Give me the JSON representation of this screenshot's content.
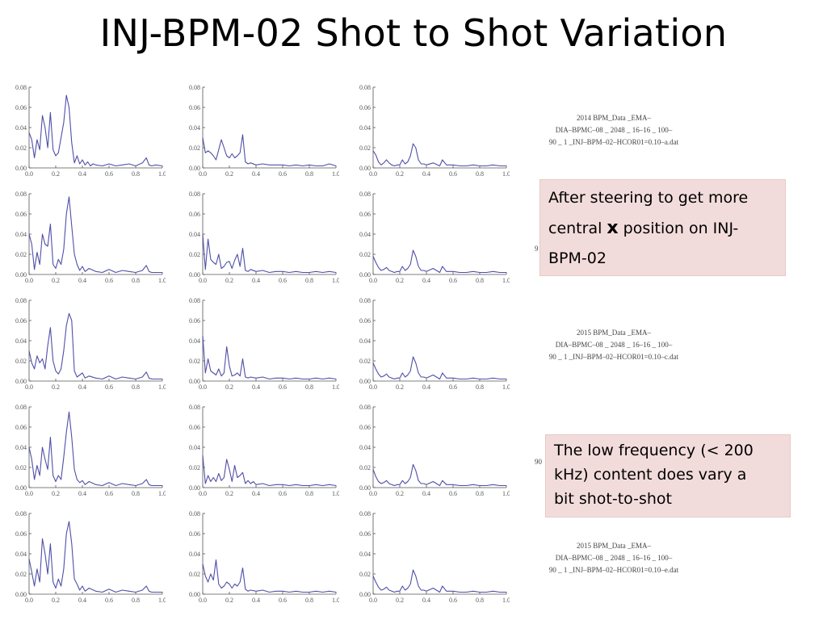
{
  "slide": {
    "title": "INJ-BPM-02 Shot to Shot Variation",
    "filenames": [
      {
        "lines": [
          "2014 BPM_Data _EMA–",
          "DIA–BPMC–08 _ 2048 _ 16–16 _ 100–",
          "90 _ 1 _INJ–BPM–02–HCOR01=0.10–a.dat"
        ]
      },
      {
        "lines": [
          "2015 BPM_Data _EMA–",
          "DIA–BPMC–08 _ 2048 _ 16–16 _ 100–",
          "90 _ 1 _INJ–BPM–02–HCOR01=0.10–c.dat"
        ]
      },
      {
        "lines": [
          "2015 BPM_Data _EMA–",
          "DIA–BPMC–08 _ 2048 _ 16–16 _ 100–",
          "90 _ 1 _INJ–BPM–02–HCOR01=0.10–e.dat"
        ]
      }
    ],
    "stray_glyphs": [
      "9",
      "90"
    ],
    "note1": {
      "line1": "After steering to get more",
      "pre": "central ",
      "bold": "x",
      "post": " position on INJ-",
      "line3": "BPM-02"
    },
    "note2": {
      "line1": "The low frequency (< 200",
      "line2": "kHz) content does vary a",
      "line3": "bit shot-to-shot"
    }
  },
  "chart_data": {
    "type": "line",
    "layout": "grid 5 rows x 3 columns",
    "line_color": "#4f4fa8",
    "axis_color": "#555555",
    "xlim": [
      0,
      1.0
    ],
    "ylim": [
      0,
      0.08
    ],
    "xticks": [
      0,
      0.2,
      0.4,
      0.6,
      0.8,
      1.0
    ],
    "yticks": [
      0,
      0.02,
      0.04,
      0.06,
      0.08
    ],
    "xtick_labels": [
      "0.0",
      "0.2",
      "0.4",
      "0.6",
      "0.8",
      "1.0"
    ],
    "ytick_labels": [
      "0.00",
      "0.02",
      "0.04",
      "0.06",
      "0.08"
    ],
    "panels": [
      {
        "x": [
          0,
          0.02,
          0.04,
          0.06,
          0.08,
          0.1,
          0.12,
          0.14,
          0.16,
          0.18,
          0.2,
          0.22,
          0.24,
          0.26,
          0.28,
          0.3,
          0.32,
          0.34,
          0.36,
          0.38,
          0.4,
          0.42,
          0.44,
          0.46,
          0.48,
          0.5,
          0.55,
          0.6,
          0.65,
          0.7,
          0.75,
          0.8,
          0.85,
          0.88,
          0.9,
          0.92,
          0.95,
          1.0
        ],
        "y": [
          0.035,
          0.028,
          0.01,
          0.028,
          0.018,
          0.052,
          0.04,
          0.02,
          0.055,
          0.018,
          0.012,
          0.015,
          0.03,
          0.045,
          0.072,
          0.06,
          0.025,
          0.005,
          0.012,
          0.004,
          0.008,
          0.003,
          0.006,
          0.002,
          0.004,
          0.003,
          0.002,
          0.004,
          0.002,
          0.003,
          0.004,
          0.002,
          0.005,
          0.01,
          0.003,
          0.002,
          0.003,
          0.002
        ]
      },
      {
        "x": [
          0,
          0.02,
          0.04,
          0.06,
          0.08,
          0.1,
          0.12,
          0.14,
          0.16,
          0.18,
          0.2,
          0.22,
          0.24,
          0.26,
          0.28,
          0.3,
          0.32,
          0.34,
          0.36,
          0.4,
          0.45,
          0.5,
          0.55,
          0.6,
          0.65,
          0.7,
          0.75,
          0.8,
          0.85,
          0.9,
          0.95,
          1.0
        ],
        "y": [
          0.03,
          0.015,
          0.017,
          0.015,
          0.012,
          0.008,
          0.018,
          0.028,
          0.02,
          0.012,
          0.01,
          0.014,
          0.01,
          0.012,
          0.015,
          0.033,
          0.006,
          0.004,
          0.005,
          0.003,
          0.004,
          0.003,
          0.003,
          0.003,
          0.002,
          0.003,
          0.002,
          0.003,
          0.002,
          0.002,
          0.004,
          0.002
        ]
      },
      {
        "x": [
          0,
          0.02,
          0.04,
          0.06,
          0.08,
          0.1,
          0.12,
          0.14,
          0.16,
          0.18,
          0.2,
          0.22,
          0.24,
          0.26,
          0.28,
          0.3,
          0.32,
          0.34,
          0.36,
          0.38,
          0.4,
          0.45,
          0.5,
          0.52,
          0.55,
          0.6,
          0.65,
          0.7,
          0.75,
          0.8,
          0.85,
          0.9,
          0.95,
          1.0
        ],
        "y": [
          0.017,
          0.013,
          0.006,
          0.003,
          0.005,
          0.008,
          0.005,
          0.003,
          0.002,
          0.003,
          0.003,
          0.008,
          0.004,
          0.006,
          0.012,
          0.024,
          0.02,
          0.008,
          0.004,
          0.004,
          0.003,
          0.005,
          0.002,
          0.008,
          0.003,
          0.003,
          0.002,
          0.002,
          0.003,
          0.002,
          0.002,
          0.003,
          0.002,
          0.002
        ]
      },
      {
        "x": [
          0,
          0.02,
          0.04,
          0.06,
          0.08,
          0.1,
          0.12,
          0.14,
          0.16,
          0.18,
          0.2,
          0.22,
          0.24,
          0.26,
          0.28,
          0.3,
          0.32,
          0.34,
          0.36,
          0.38,
          0.4,
          0.42,
          0.45,
          0.5,
          0.55,
          0.6,
          0.65,
          0.7,
          0.75,
          0.8,
          0.85,
          0.88,
          0.9,
          0.92,
          0.95,
          1.0
        ],
        "y": [
          0.04,
          0.03,
          0.005,
          0.022,
          0.01,
          0.04,
          0.03,
          0.028,
          0.05,
          0.01,
          0.006,
          0.015,
          0.01,
          0.025,
          0.06,
          0.077,
          0.048,
          0.02,
          0.01,
          0.004,
          0.008,
          0.003,
          0.006,
          0.003,
          0.002,
          0.005,
          0.002,
          0.004,
          0.003,
          0.002,
          0.004,
          0.009,
          0.003,
          0.002,
          0.002,
          0.002
        ]
      },
      {
        "x": [
          0,
          0.02,
          0.04,
          0.06,
          0.08,
          0.1,
          0.12,
          0.14,
          0.16,
          0.18,
          0.2,
          0.22,
          0.24,
          0.26,
          0.28,
          0.3,
          0.32,
          0.34,
          0.36,
          0.4,
          0.45,
          0.5,
          0.55,
          0.6,
          0.65,
          0.7,
          0.75,
          0.8,
          0.85,
          0.9,
          0.95,
          1.0
        ],
        "y": [
          0.04,
          0.005,
          0.035,
          0.015,
          0.012,
          0.01,
          0.02,
          0.006,
          0.008,
          0.012,
          0.013,
          0.006,
          0.014,
          0.02,
          0.008,
          0.026,
          0.004,
          0.003,
          0.005,
          0.003,
          0.004,
          0.002,
          0.003,
          0.003,
          0.002,
          0.003,
          0.002,
          0.002,
          0.003,
          0.002,
          0.003,
          0.002
        ]
      },
      {
        "x": [
          0,
          0.02,
          0.04,
          0.06,
          0.08,
          0.1,
          0.12,
          0.14,
          0.16,
          0.18,
          0.2,
          0.22,
          0.24,
          0.26,
          0.28,
          0.3,
          0.32,
          0.34,
          0.36,
          0.38,
          0.4,
          0.45,
          0.5,
          0.52,
          0.55,
          0.6,
          0.65,
          0.7,
          0.75,
          0.8,
          0.85,
          0.9,
          0.95,
          1.0
        ],
        "y": [
          0.018,
          0.012,
          0.007,
          0.004,
          0.005,
          0.007,
          0.004,
          0.003,
          0.002,
          0.003,
          0.003,
          0.008,
          0.004,
          0.006,
          0.01,
          0.024,
          0.018,
          0.008,
          0.004,
          0.004,
          0.003,
          0.006,
          0.002,
          0.008,
          0.003,
          0.003,
          0.002,
          0.002,
          0.003,
          0.002,
          0.002,
          0.003,
          0.002,
          0.002
        ]
      },
      {
        "x": [
          0,
          0.02,
          0.04,
          0.06,
          0.08,
          0.1,
          0.12,
          0.14,
          0.16,
          0.18,
          0.2,
          0.22,
          0.24,
          0.26,
          0.28,
          0.3,
          0.32,
          0.34,
          0.36,
          0.38,
          0.4,
          0.42,
          0.45,
          0.5,
          0.55,
          0.6,
          0.65,
          0.7,
          0.75,
          0.8,
          0.85,
          0.88,
          0.9,
          0.92,
          0.95,
          1.0
        ],
        "y": [
          0.03,
          0.018,
          0.012,
          0.025,
          0.018,
          0.022,
          0.012,
          0.035,
          0.053,
          0.02,
          0.01,
          0.007,
          0.012,
          0.03,
          0.055,
          0.067,
          0.06,
          0.01,
          0.004,
          0.006,
          0.008,
          0.003,
          0.005,
          0.003,
          0.002,
          0.005,
          0.002,
          0.004,
          0.003,
          0.002,
          0.004,
          0.009,
          0.003,
          0.002,
          0.002,
          0.002
        ]
      },
      {
        "x": [
          0,
          0.02,
          0.04,
          0.06,
          0.08,
          0.1,
          0.12,
          0.14,
          0.16,
          0.18,
          0.2,
          0.22,
          0.24,
          0.26,
          0.28,
          0.3,
          0.32,
          0.34,
          0.36,
          0.4,
          0.45,
          0.5,
          0.55,
          0.6,
          0.65,
          0.7,
          0.75,
          0.8,
          0.85,
          0.9,
          0.95,
          1.0
        ],
        "y": [
          0.045,
          0.008,
          0.022,
          0.01,
          0.008,
          0.006,
          0.012,
          0.005,
          0.008,
          0.034,
          0.015,
          0.005,
          0.006,
          0.008,
          0.005,
          0.022,
          0.004,
          0.003,
          0.004,
          0.003,
          0.004,
          0.002,
          0.003,
          0.003,
          0.002,
          0.003,
          0.002,
          0.002,
          0.003,
          0.002,
          0.003,
          0.002
        ]
      },
      {
        "x": [
          0,
          0.02,
          0.04,
          0.06,
          0.08,
          0.1,
          0.12,
          0.14,
          0.16,
          0.18,
          0.2,
          0.22,
          0.24,
          0.26,
          0.28,
          0.3,
          0.32,
          0.34,
          0.36,
          0.38,
          0.4,
          0.45,
          0.5,
          0.52,
          0.55,
          0.6,
          0.65,
          0.7,
          0.75,
          0.8,
          0.85,
          0.9,
          0.95,
          1.0
        ],
        "y": [
          0.018,
          0.012,
          0.007,
          0.004,
          0.005,
          0.007,
          0.004,
          0.003,
          0.002,
          0.003,
          0.003,
          0.008,
          0.004,
          0.006,
          0.01,
          0.024,
          0.018,
          0.008,
          0.004,
          0.004,
          0.003,
          0.006,
          0.002,
          0.008,
          0.003,
          0.003,
          0.002,
          0.002,
          0.003,
          0.002,
          0.002,
          0.003,
          0.002,
          0.002
        ]
      },
      {
        "x": [
          0,
          0.02,
          0.04,
          0.06,
          0.08,
          0.1,
          0.12,
          0.14,
          0.16,
          0.18,
          0.2,
          0.22,
          0.24,
          0.26,
          0.28,
          0.3,
          0.32,
          0.34,
          0.36,
          0.38,
          0.4,
          0.42,
          0.45,
          0.5,
          0.55,
          0.6,
          0.65,
          0.7,
          0.75,
          0.8,
          0.85,
          0.88,
          0.9,
          0.92,
          0.95,
          1.0
        ],
        "y": [
          0.04,
          0.028,
          0.008,
          0.022,
          0.012,
          0.04,
          0.028,
          0.018,
          0.05,
          0.012,
          0.006,
          0.012,
          0.008,
          0.03,
          0.055,
          0.075,
          0.05,
          0.018,
          0.008,
          0.005,
          0.007,
          0.003,
          0.006,
          0.003,
          0.002,
          0.005,
          0.002,
          0.004,
          0.003,
          0.002,
          0.004,
          0.008,
          0.003,
          0.002,
          0.002,
          0.002
        ]
      },
      {
        "x": [
          0,
          0.02,
          0.04,
          0.06,
          0.08,
          0.1,
          0.12,
          0.14,
          0.16,
          0.18,
          0.2,
          0.22,
          0.24,
          0.26,
          0.28,
          0.3,
          0.32,
          0.34,
          0.36,
          0.38,
          0.4,
          0.45,
          0.5,
          0.55,
          0.6,
          0.65,
          0.7,
          0.75,
          0.8,
          0.85,
          0.9,
          0.95,
          1.0
        ],
        "y": [
          0.032,
          0.004,
          0.012,
          0.006,
          0.01,
          0.006,
          0.014,
          0.007,
          0.01,
          0.028,
          0.018,
          0.006,
          0.022,
          0.01,
          0.012,
          0.015,
          0.004,
          0.007,
          0.004,
          0.006,
          0.003,
          0.004,
          0.002,
          0.003,
          0.003,
          0.002,
          0.003,
          0.002,
          0.002,
          0.003,
          0.002,
          0.003,
          0.002
        ]
      },
      {
        "x": [
          0,
          0.02,
          0.04,
          0.06,
          0.08,
          0.1,
          0.12,
          0.14,
          0.16,
          0.18,
          0.2,
          0.22,
          0.24,
          0.26,
          0.28,
          0.3,
          0.32,
          0.34,
          0.36,
          0.38,
          0.4,
          0.45,
          0.5,
          0.52,
          0.55,
          0.6,
          0.65,
          0.7,
          0.75,
          0.8,
          0.85,
          0.9,
          0.95,
          1.0
        ],
        "y": [
          0.018,
          0.011,
          0.006,
          0.004,
          0.005,
          0.007,
          0.004,
          0.003,
          0.002,
          0.003,
          0.003,
          0.007,
          0.004,
          0.006,
          0.01,
          0.023,
          0.017,
          0.007,
          0.004,
          0.004,
          0.003,
          0.006,
          0.002,
          0.007,
          0.003,
          0.003,
          0.002,
          0.002,
          0.003,
          0.002,
          0.002,
          0.003,
          0.002,
          0.002
        ]
      },
      {
        "x": [
          0,
          0.02,
          0.04,
          0.06,
          0.08,
          0.1,
          0.12,
          0.14,
          0.16,
          0.18,
          0.2,
          0.22,
          0.24,
          0.26,
          0.28,
          0.3,
          0.32,
          0.34,
          0.36,
          0.38,
          0.4,
          0.42,
          0.45,
          0.5,
          0.55,
          0.6,
          0.65,
          0.7,
          0.75,
          0.8,
          0.85,
          0.88,
          0.9,
          0.92,
          0.95,
          1.0
        ],
        "y": [
          0.035,
          0.022,
          0.008,
          0.025,
          0.012,
          0.055,
          0.04,
          0.02,
          0.05,
          0.012,
          0.006,
          0.015,
          0.008,
          0.025,
          0.06,
          0.072,
          0.05,
          0.015,
          0.01,
          0.004,
          0.008,
          0.003,
          0.006,
          0.003,
          0.002,
          0.005,
          0.002,
          0.004,
          0.003,
          0.002,
          0.004,
          0.008,
          0.003,
          0.002,
          0.002,
          0.002
        ]
      },
      {
        "x": [
          0,
          0.02,
          0.04,
          0.06,
          0.08,
          0.1,
          0.12,
          0.14,
          0.16,
          0.18,
          0.2,
          0.22,
          0.24,
          0.26,
          0.28,
          0.3,
          0.32,
          0.34,
          0.36,
          0.4,
          0.45,
          0.5,
          0.55,
          0.6,
          0.65,
          0.7,
          0.75,
          0.8,
          0.85,
          0.9,
          0.95,
          1.0
        ],
        "y": [
          0.03,
          0.018,
          0.012,
          0.02,
          0.014,
          0.034,
          0.01,
          0.006,
          0.008,
          0.012,
          0.01,
          0.006,
          0.01,
          0.008,
          0.012,
          0.026,
          0.005,
          0.003,
          0.004,
          0.003,
          0.004,
          0.002,
          0.003,
          0.003,
          0.002,
          0.003,
          0.002,
          0.002,
          0.003,
          0.002,
          0.003,
          0.002
        ]
      },
      {
        "x": [
          0,
          0.02,
          0.04,
          0.06,
          0.08,
          0.1,
          0.12,
          0.14,
          0.16,
          0.18,
          0.2,
          0.22,
          0.24,
          0.26,
          0.28,
          0.3,
          0.32,
          0.34,
          0.36,
          0.38,
          0.4,
          0.45,
          0.5,
          0.52,
          0.55,
          0.6,
          0.65,
          0.7,
          0.75,
          0.8,
          0.85,
          0.9,
          0.95,
          1.0
        ],
        "y": [
          0.018,
          0.012,
          0.007,
          0.004,
          0.005,
          0.007,
          0.004,
          0.003,
          0.002,
          0.003,
          0.003,
          0.008,
          0.004,
          0.006,
          0.01,
          0.024,
          0.018,
          0.008,
          0.004,
          0.004,
          0.003,
          0.006,
          0.002,
          0.008,
          0.003,
          0.003,
          0.002,
          0.002,
          0.003,
          0.002,
          0.002,
          0.003,
          0.002,
          0.002
        ]
      }
    ]
  }
}
